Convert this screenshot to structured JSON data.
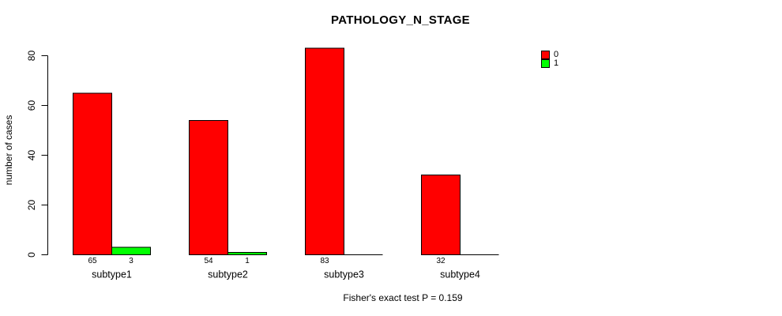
{
  "chart_data": {
    "type": "bar",
    "title": "PATHOLOGY_N_STAGE",
    "ylabel": "number of cases",
    "xlabel": "",
    "subtitle": "Fisher's exact test P = 0.159",
    "categories": [
      "subtype1",
      "subtype2",
      "subtype3",
      "subtype4"
    ],
    "series": [
      {
        "name": "0",
        "color": "#ff0000",
        "values": [
          65,
          54,
          83,
          32
        ]
      },
      {
        "name": "1",
        "color": "#00ff00",
        "values": [
          3,
          1,
          0,
          0
        ]
      }
    ],
    "yticks": [
      0,
      20,
      40,
      60,
      80
    ],
    "ylim": [
      0,
      80
    ],
    "grid": false,
    "legend_position": "top-right",
    "bar_border_color": "#000000",
    "background_color": "#ffffff"
  }
}
